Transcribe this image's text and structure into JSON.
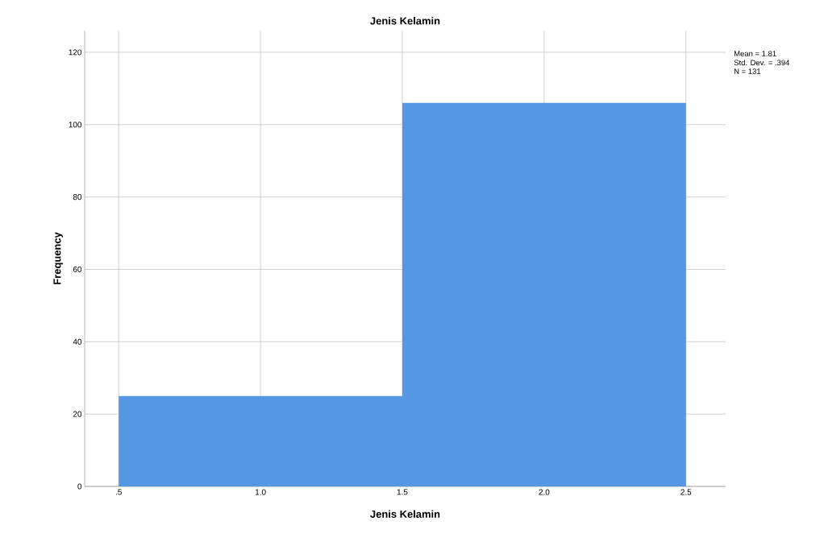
{
  "chart_data": {
    "type": "histogram",
    "title": "Jenis Kelamin",
    "xlabel": "Jenis Kelamin",
    "ylabel": "Frequency",
    "bins": [
      0.5,
      1.5,
      2.5
    ],
    "values": [
      25,
      106
    ],
    "color": "#5597e2",
    "xlim": [
      0.38,
      2.64
    ],
    "ylim": [
      0,
      126
    ],
    "xticks": [
      {
        "value": 0.5,
        "label": ".5"
      },
      {
        "value": 1.0,
        "label": "1.0"
      },
      {
        "value": 1.5,
        "label": "1.5"
      },
      {
        "value": 2.0,
        "label": "2.0"
      },
      {
        "value": 2.5,
        "label": "2.5"
      }
    ],
    "yticks": [
      0,
      20,
      40,
      60,
      80,
      100,
      120
    ],
    "grid": true,
    "annotations": [
      "Mean = 1.81",
      "Std. Dev. = .394",
      "N = 131"
    ]
  }
}
